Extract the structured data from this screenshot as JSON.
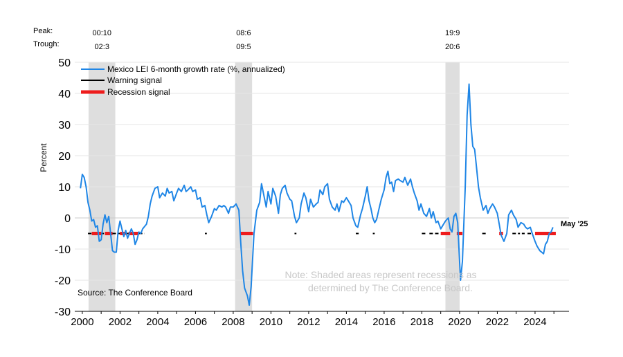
{
  "chart_data": {
    "type": "line",
    "ylabel": "Percent",
    "xlim": [
      1999.6,
      2025.8
    ],
    "ylim": [
      -30,
      50
    ],
    "y_ticks": [
      50,
      40,
      30,
      20,
      10,
      0,
      -10,
      -20,
      -30
    ],
    "x_ticks": [
      2000,
      2002,
      2004,
      2006,
      2008,
      2010,
      2012,
      2014,
      2016,
      2018,
      2020,
      2022,
      2024
    ],
    "peak_label": "Peak:",
    "trough_label": "Trough:",
    "recessions": [
      {
        "start": 2000.75,
        "end": 2001.67,
        "peak_text": "00:10",
        "trough_text": "02:3",
        "shade_start": 2000.33,
        "shade_end": 2001.75
      },
      {
        "start": 2008.42,
        "end": 2009.33,
        "peak_text": "08:6",
        "trough_text": "09:5",
        "shade_start": 2008.1,
        "shade_end": 2009.0
      },
      {
        "start": 2019.67,
        "end": 2020.42,
        "peak_text": "19:9",
        "trough_text": "20:6",
        "shade_start": 2019.25,
        "shade_end": 2020.0
      }
    ],
    "legend": {
      "series": "Mexico LEI 6-month growth rate (%, annualized)",
      "warning": "Warning signal",
      "recession": "Recession signal"
    },
    "source": "Source: The Conference Board",
    "note_line1": "Note: Shaded areas represent recessions as",
    "note_line2": "determined by The Conference Board.",
    "end_label": "May '25",
    "colors": {
      "line": "#1f86e6",
      "warning": "#000000",
      "recession": "#ee1c1c",
      "shade": "#dedede",
      "grid": "#e6e6e6",
      "note": "#c8c8c8"
    },
    "signal_level": -5,
    "series": [
      {
        "name": "Mexico LEI 6-month growth rate (%, annualized)",
        "points": [
          [
            1999.9,
            9.5
          ],
          [
            2000.0,
            14.0
          ],
          [
            2000.1,
            13.0
          ],
          [
            2000.2,
            10.0
          ],
          [
            2000.3,
            5.0
          ],
          [
            2000.4,
            2.5
          ],
          [
            2000.5,
            -1.0
          ],
          [
            2000.6,
            -0.5
          ],
          [
            2000.7,
            -3.0
          ],
          [
            2000.8,
            -2.5
          ],
          [
            2000.9,
            -7.5
          ],
          [
            2001.0,
            -7.0
          ],
          [
            2001.1,
            -2.0
          ],
          [
            2001.2,
            1.0
          ],
          [
            2001.3,
            -1.5
          ],
          [
            2001.4,
            0.5
          ],
          [
            2001.5,
            -5.0
          ],
          [
            2001.6,
            -10.5
          ],
          [
            2001.7,
            -11.0
          ],
          [
            2001.8,
            -11.0
          ],
          [
            2001.9,
            -4.0
          ],
          [
            2002.0,
            -1.0
          ],
          [
            2002.1,
            -3.5
          ],
          [
            2002.2,
            -6.0
          ],
          [
            2002.3,
            -4.0
          ],
          [
            2002.4,
            -6.5
          ],
          [
            2002.5,
            -5.0
          ],
          [
            2002.6,
            -3.5
          ],
          [
            2002.7,
            -5.0
          ],
          [
            2002.8,
            -8.5
          ],
          [
            2002.9,
            -7.0
          ],
          [
            2003.0,
            -4.5
          ],
          [
            2003.1,
            -5.0
          ],
          [
            2003.2,
            -3.5
          ],
          [
            2003.4,
            -2.0
          ],
          [
            2003.5,
            0.5
          ],
          [
            2003.6,
            4.5
          ],
          [
            2003.7,
            7.0
          ],
          [
            2003.85,
            9.5
          ],
          [
            2004.0,
            10.0
          ],
          [
            2004.1,
            6.5
          ],
          [
            2004.25,
            8.0
          ],
          [
            2004.4,
            7.0
          ],
          [
            2004.5,
            9.5
          ],
          [
            2004.6,
            8.0
          ],
          [
            2004.75,
            8.5
          ],
          [
            2004.85,
            5.5
          ],
          [
            2005.0,
            8.0
          ],
          [
            2005.1,
            9.5
          ],
          [
            2005.25,
            8.5
          ],
          [
            2005.4,
            10.5
          ],
          [
            2005.5,
            8.5
          ],
          [
            2005.6,
            9.0
          ],
          [
            2005.75,
            10.0
          ],
          [
            2005.85,
            8.5
          ],
          [
            2006.0,
            9.0
          ],
          [
            2006.1,
            6.0
          ],
          [
            2006.25,
            6.5
          ],
          [
            2006.35,
            3.5
          ],
          [
            2006.5,
            4.0
          ],
          [
            2006.6,
            1.0
          ],
          [
            2006.7,
            -1.5
          ],
          [
            2006.85,
            0.5
          ],
          [
            2007.0,
            3.0
          ],
          [
            2007.1,
            2.5
          ],
          [
            2007.25,
            4.0
          ],
          [
            2007.4,
            3.5
          ],
          [
            2007.5,
            4.0
          ],
          [
            2007.6,
            3.5
          ],
          [
            2007.75,
            1.5
          ],
          [
            2007.85,
            3.5
          ],
          [
            2008.0,
            3.5
          ],
          [
            2008.15,
            4.5
          ],
          [
            2008.3,
            2.5
          ],
          [
            2008.4,
            -8.0
          ],
          [
            2008.5,
            -17.0
          ],
          [
            2008.6,
            -22.5
          ],
          [
            2008.75,
            -25.0
          ],
          [
            2008.85,
            -28.0
          ],
          [
            2008.95,
            -22.0
          ],
          [
            2009.1,
            -5.0
          ],
          [
            2009.25,
            2.5
          ],
          [
            2009.4,
            5.0
          ],
          [
            2009.5,
            11.0
          ],
          [
            2009.6,
            8.0
          ],
          [
            2009.75,
            3.5
          ],
          [
            2009.85,
            8.5
          ],
          [
            2010.0,
            4.5
          ],
          [
            2010.1,
            9.5
          ],
          [
            2010.25,
            7.0
          ],
          [
            2010.4,
            1.5
          ],
          [
            2010.5,
            7.5
          ],
          [
            2010.6,
            9.5
          ],
          [
            2010.75,
            10.5
          ],
          [
            2010.85,
            8.0
          ],
          [
            2011.0,
            6.0
          ],
          [
            2011.1,
            5.5
          ],
          [
            2011.25,
            0.5
          ],
          [
            2011.35,
            -1.5
          ],
          [
            2011.5,
            0.0
          ],
          [
            2011.6,
            4.5
          ],
          [
            2011.75,
            8.0
          ],
          [
            2011.85,
            6.5
          ],
          [
            2012.0,
            2.0
          ],
          [
            2012.1,
            6.0
          ],
          [
            2012.25,
            3.5
          ],
          [
            2012.4,
            4.5
          ],
          [
            2012.5,
            5.0
          ],
          [
            2012.6,
            9.0
          ],
          [
            2012.75,
            7.5
          ],
          [
            2012.85,
            10.0
          ],
          [
            2013.0,
            11.0
          ],
          [
            2013.1,
            6.0
          ],
          [
            2013.25,
            3.5
          ],
          [
            2013.4,
            2.5
          ],
          [
            2013.5,
            4.5
          ],
          [
            2013.6,
            2.0
          ],
          [
            2013.75,
            5.5
          ],
          [
            2013.85,
            5.0
          ],
          [
            2014.0,
            6.5
          ],
          [
            2014.1,
            5.5
          ],
          [
            2014.25,
            4.0
          ],
          [
            2014.35,
            0.0
          ],
          [
            2014.5,
            -2.5
          ],
          [
            2014.6,
            -3.0
          ],
          [
            2014.75,
            1.0
          ],
          [
            2014.85,
            3.0
          ],
          [
            2015.0,
            7.0
          ],
          [
            2015.1,
            10.0
          ],
          [
            2015.2,
            5.5
          ],
          [
            2015.3,
            3.0
          ],
          [
            2015.4,
            0.0
          ],
          [
            2015.5,
            -1.5
          ],
          [
            2015.6,
            -0.5
          ],
          [
            2015.75,
            3.5
          ],
          [
            2015.85,
            6.0
          ],
          [
            2016.0,
            9.0
          ],
          [
            2016.1,
            13.0
          ],
          [
            2016.2,
            15.0
          ],
          [
            2016.3,
            11.0
          ],
          [
            2016.4,
            11.5
          ],
          [
            2016.5,
            8.5
          ],
          [
            2016.6,
            12.0
          ],
          [
            2016.75,
            12.5
          ],
          [
            2016.85,
            12.0
          ],
          [
            2017.0,
            11.5
          ],
          [
            2017.1,
            13.0
          ],
          [
            2017.25,
            10.5
          ],
          [
            2017.4,
            12.5
          ],
          [
            2017.5,
            10.0
          ],
          [
            2017.6,
            8.0
          ],
          [
            2017.75,
            5.5
          ],
          [
            2017.85,
            2.5
          ],
          [
            2017.95,
            4.5
          ],
          [
            2018.1,
            1.5
          ],
          [
            2018.25,
            0.5
          ],
          [
            2018.4,
            3.0
          ],
          [
            2018.5,
            0.0
          ],
          [
            2018.6,
            2.0
          ],
          [
            2018.75,
            -1.5
          ],
          [
            2018.85,
            -1.0
          ],
          [
            2019.0,
            -3.5
          ],
          [
            2019.1,
            -2.5
          ],
          [
            2019.25,
            -1.0
          ],
          [
            2019.4,
            0.0
          ],
          [
            2019.5,
            -3.5
          ],
          [
            2019.6,
            -4.5
          ],
          [
            2019.7,
            0.5
          ],
          [
            2019.8,
            1.5
          ],
          [
            2019.9,
            -1.5
          ],
          [
            2019.95,
            -8.0
          ],
          [
            2020.05,
            -20.0
          ],
          [
            2020.15,
            -14.0
          ],
          [
            2020.3,
            10.0
          ],
          [
            2020.4,
            33.0
          ],
          [
            2020.5,
            43.0
          ],
          [
            2020.6,
            30.0
          ],
          [
            2020.7,
            23.0
          ],
          [
            2020.8,
            22.0
          ],
          [
            2020.9,
            16.0
          ],
          [
            2021.0,
            10.0
          ],
          [
            2021.1,
            6.5
          ],
          [
            2021.25,
            2.5
          ],
          [
            2021.4,
            4.0
          ],
          [
            2021.5,
            1.5
          ],
          [
            2021.6,
            3.0
          ],
          [
            2021.75,
            4.5
          ],
          [
            2021.85,
            3.5
          ],
          [
            2022.0,
            1.5
          ],
          [
            2022.1,
            -2.0
          ],
          [
            2022.2,
            -5.5
          ],
          [
            2022.35,
            -7.5
          ],
          [
            2022.5,
            -5.0
          ],
          [
            2022.6,
            1.0
          ],
          [
            2022.75,
            2.5
          ],
          [
            2022.85,
            1.0
          ],
          [
            2023.0,
            -0.5
          ],
          [
            2023.1,
            -3.0
          ],
          [
            2023.25,
            -1.5
          ],
          [
            2023.4,
            -2.0
          ],
          [
            2023.5,
            -3.0
          ],
          [
            2023.6,
            -3.5
          ],
          [
            2023.75,
            -3.0
          ],
          [
            2023.85,
            -5.0
          ],
          [
            2024.0,
            -7.5
          ],
          [
            2024.1,
            -9.0
          ],
          [
            2024.25,
            -10.5
          ],
          [
            2024.35,
            -11.0
          ],
          [
            2024.45,
            -11.5
          ],
          [
            2024.55,
            -8.5
          ],
          [
            2024.65,
            -7.5
          ],
          [
            2024.75,
            -5.0
          ],
          [
            2024.85,
            -4.5
          ],
          [
            2024.95,
            -3.0
          ]
        ]
      }
    ],
    "warning_signals": [
      [
        2000.3,
        2000.55
      ],
      [
        2001.0,
        2001.15
      ],
      [
        2001.6,
        2002.0
      ],
      [
        2002.3,
        2002.45
      ],
      [
        2003.0,
        2003.3
      ],
      [
        2006.5,
        2006.6
      ],
      [
        2011.25,
        2011.35
      ],
      [
        2014.5,
        2014.65
      ],
      [
        2015.4,
        2015.5
      ],
      [
        2018.0,
        2018.2
      ],
      [
        2018.4,
        2018.6
      ],
      [
        2018.7,
        2018.9
      ],
      [
        2021.2,
        2021.45
      ],
      [
        2022.8,
        2023.2
      ],
      [
        2023.3,
        2023.45
      ],
      [
        2023.6,
        2023.8
      ]
    ],
    "recession_signals": [
      [
        2000.5,
        2001.0
      ],
      [
        2001.2,
        2001.6
      ],
      [
        2002.0,
        2002.3
      ],
      [
        2002.45,
        2003.0
      ],
      [
        2008.35,
        2009.05
      ],
      [
        2019.0,
        2019.5
      ],
      [
        2019.85,
        2020.15
      ],
      [
        2022.1,
        2022.3
      ],
      [
        2024.0,
        2025.1
      ]
    ]
  }
}
